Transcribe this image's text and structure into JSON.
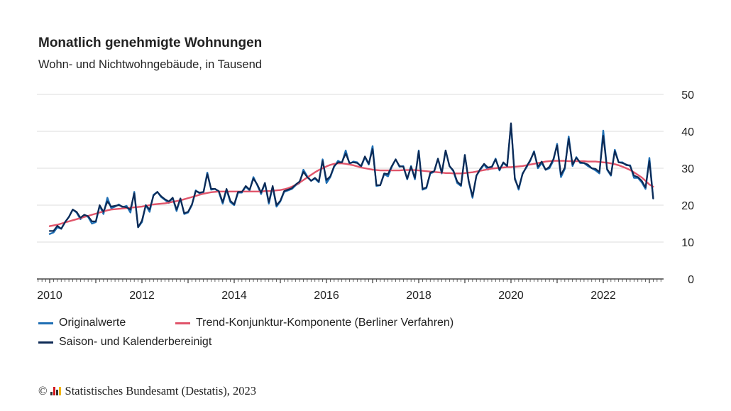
{
  "chart_data": {
    "type": "line",
    "title": "Monatlich genehmigte Wohnungen",
    "subtitle": "Wohn- und Nichtwohngebäude, in Tausend",
    "xlabel": "",
    "ylabel": "",
    "ylim": [
      0,
      50
    ],
    "yticks": [
      "0",
      "10",
      "20",
      "30",
      "40",
      "50"
    ],
    "xticks": [
      "2010",
      "2012",
      "2014",
      "2016",
      "2018",
      "2020",
      "2022"
    ],
    "x_start": "2010-01",
    "x_end": "2023-01",
    "x_frequency": "monthly",
    "grid": true,
    "legend_position": "bottom-left",
    "series": [
      {
        "name": "Originalwerte",
        "color": "#1f6fb4",
        "values": [
          12.2,
          12.6,
          14.0,
          13.6,
          15.4,
          16.8,
          18.8,
          18.0,
          16.2,
          17.2,
          16.8,
          15.0,
          15.4,
          19.8,
          17.6,
          22.0,
          19.2,
          19.6,
          20.2,
          19.4,
          19.8,
          18.0,
          23.6,
          14.0,
          15.4,
          20.0,
          18.2,
          22.8,
          23.6,
          22.2,
          21.4,
          20.6,
          22.0,
          18.4,
          21.8,
          17.6,
          18.0,
          20.0,
          24.0,
          23.2,
          23.4,
          28.8,
          24.2,
          24.4,
          23.6,
          20.4,
          24.2,
          20.8,
          20.0,
          23.4,
          23.4,
          25.0,
          24.0,
          27.6,
          25.4,
          23.0,
          26.0,
          20.4,
          25.0,
          19.6,
          21.0,
          23.6,
          24.0,
          24.4,
          25.4,
          26.0,
          29.6,
          27.8,
          26.6,
          27.2,
          26.2,
          32.4,
          26.0,
          27.6,
          30.4,
          32.0,
          31.4,
          34.8,
          31.2,
          31.8,
          31.6,
          30.4,
          33.0,
          31.0,
          36.0,
          25.2,
          25.4,
          28.4,
          27.8,
          30.4,
          32.4,
          30.4,
          30.6,
          27.0,
          30.6,
          27.0,
          34.8,
          24.2,
          24.6,
          28.6,
          29.0,
          32.6,
          28.6,
          34.8,
          30.6,
          29.2,
          26.0,
          25.2,
          33.6,
          26.4,
          22.0,
          28.0,
          29.6,
          31.0,
          29.6,
          30.2,
          32.6,
          29.4,
          31.4,
          30.6,
          42.0,
          27.4,
          24.2,
          28.6,
          30.2,
          32.0,
          34.6,
          30.0,
          31.4,
          29.6,
          30.0,
          32.0,
          36.6,
          27.6,
          29.8,
          38.6,
          30.6,
          33.0,
          31.4,
          31.4,
          30.6,
          30.0,
          29.4,
          28.6,
          40.2,
          29.6,
          28.0,
          35.0,
          31.6,
          31.6,
          30.8,
          30.8,
          27.4,
          27.4,
          26.2,
          24.4,
          32.8,
          21.8
        ]
      },
      {
        "name": "Trend-Konjunktur-Komponente (Berliner Verfahren)",
        "color": "#e0546a",
        "values": [
          14.3,
          14.5,
          14.7,
          15.0,
          15.3,
          15.6,
          15.9,
          16.2,
          16.5,
          16.8,
          17.1,
          17.4,
          17.7,
          18.0,
          18.3,
          18.6,
          18.8,
          18.9,
          19.0,
          19.1,
          19.2,
          19.3,
          19.4,
          19.5,
          19.6,
          19.8,
          20.0,
          20.2,
          20.3,
          20.4,
          20.5,
          20.7,
          20.9,
          21.1,
          21.3,
          21.6,
          21.9,
          22.2,
          22.5,
          22.8,
          23.1,
          23.3,
          23.5,
          23.6,
          23.7,
          23.7,
          23.7,
          23.7,
          23.7,
          23.7,
          23.7,
          23.7,
          23.7,
          23.7,
          23.7,
          23.7,
          23.8,
          23.8,
          23.9,
          24.0,
          24.1,
          24.3,
          24.6,
          25.0,
          25.5,
          26.1,
          26.8,
          27.5,
          28.2,
          28.9,
          29.5,
          30.0,
          30.5,
          30.9,
          31.2,
          31.3,
          31.3,
          31.2,
          31.0,
          30.8,
          30.5,
          30.2,
          30.0,
          29.8,
          29.6,
          29.5,
          29.4,
          29.4,
          29.4,
          29.4,
          29.4,
          29.4,
          29.5,
          29.5,
          29.5,
          29.5,
          29.4,
          29.3,
          29.2,
          29.1,
          29.0,
          28.9,
          28.8,
          28.7,
          28.7,
          28.6,
          28.6,
          28.6,
          28.7,
          28.8,
          28.9,
          29.1,
          29.3,
          29.5,
          29.7,
          29.9,
          30.0,
          30.1,
          30.2,
          30.3,
          30.3,
          30.4,
          30.5,
          30.6,
          30.8,
          31.0,
          31.2,
          31.4,
          31.6,
          31.8,
          31.9,
          32.0,
          32.0,
          32.0,
          32.0,
          31.9,
          31.9,
          31.9,
          31.9,
          31.9,
          31.8,
          31.8,
          31.8,
          31.7,
          31.6,
          31.5,
          31.3,
          31.1,
          30.8,
          30.4,
          30.0,
          29.5,
          28.9,
          28.2,
          27.5,
          26.6,
          25.6,
          25.0
        ]
      },
      {
        "name": "Saison- und Kalenderbereinigt",
        "color": "#0d2a55",
        "values": [
          13.0,
          13.0,
          14.4,
          13.6,
          15.4,
          16.8,
          18.8,
          18.2,
          16.6,
          17.4,
          17.0,
          15.6,
          15.6,
          20.0,
          18.2,
          21.0,
          19.6,
          19.8,
          20.0,
          19.6,
          19.4,
          18.8,
          23.2,
          14.0,
          15.8,
          20.0,
          18.8,
          22.6,
          23.6,
          22.4,
          21.6,
          21.0,
          22.0,
          18.8,
          21.8,
          17.8,
          18.2,
          20.2,
          23.8,
          23.4,
          23.6,
          28.4,
          24.4,
          24.4,
          23.8,
          20.8,
          24.4,
          21.2,
          20.2,
          23.6,
          23.6,
          25.2,
          24.2,
          27.2,
          25.6,
          23.4,
          26.0,
          20.8,
          25.2,
          20.0,
          21.2,
          23.8,
          24.2,
          24.6,
          25.6,
          26.4,
          29.0,
          27.6,
          26.6,
          27.4,
          26.4,
          32.0,
          26.8,
          27.8,
          30.6,
          31.6,
          31.6,
          34.0,
          31.4,
          31.6,
          31.4,
          30.6,
          33.2,
          31.2,
          35.2,
          25.4,
          25.4,
          28.6,
          28.4,
          30.6,
          32.4,
          30.6,
          30.4,
          27.2,
          30.4,
          27.4,
          34.6,
          24.4,
          24.8,
          28.8,
          29.2,
          32.6,
          28.8,
          34.8,
          30.6,
          29.4,
          26.4,
          25.4,
          33.6,
          26.6,
          22.4,
          28.0,
          29.8,
          31.2,
          30.2,
          30.4,
          32.4,
          29.6,
          31.6,
          30.6,
          42.2,
          27.0,
          24.6,
          28.4,
          30.4,
          32.2,
          34.4,
          30.4,
          31.8,
          29.6,
          30.4,
          32.4,
          36.2,
          28.2,
          30.2,
          38.0,
          31.0,
          32.8,
          31.6,
          31.4,
          31.0,
          30.0,
          29.8,
          29.0,
          38.8,
          29.8,
          28.2,
          34.6,
          31.6,
          31.4,
          31.0,
          30.6,
          28.0,
          27.6,
          26.6,
          24.8,
          32.0,
          21.8
        ]
      }
    ]
  },
  "footer": {
    "copyright_symbol": "©",
    "source": "Statistisches Bundesamt (Destatis), 2023"
  }
}
